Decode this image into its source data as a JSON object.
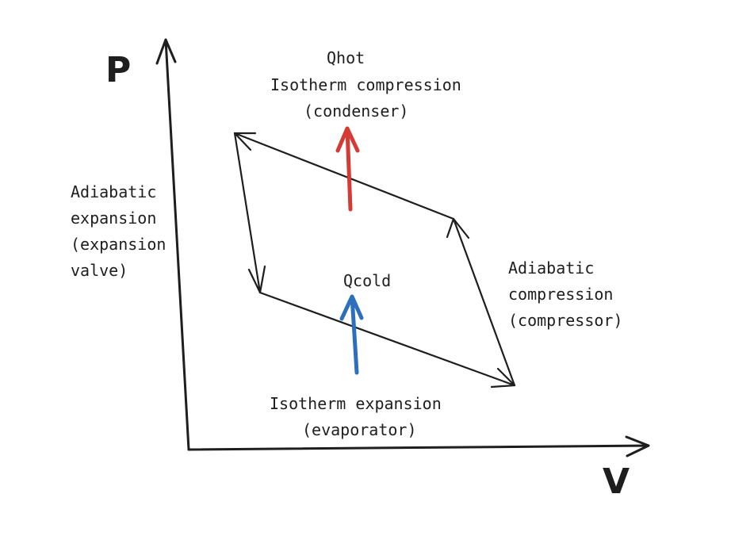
{
  "axes": {
    "y_label": "P",
    "x_label": "V"
  },
  "labels": {
    "qhot": "Qhot",
    "isotherm_compression": "Isotherm compression",
    "condenser": "(condenser)",
    "adiabatic_expansion_1": "Adiabatic",
    "adiabatic_expansion_2": "expansion",
    "adiabatic_expansion_3": "(expansion",
    "adiabatic_expansion_4": "valve)",
    "qcold": "Qcold",
    "adiabatic_compression_1": "Adiabatic",
    "adiabatic_compression_2": "compression",
    "adiabatic_compression_3": "(compressor)",
    "isotherm_expansion": "Isotherm expansion",
    "evaporator": "(evaporator)"
  },
  "colors": {
    "hot": "#d63a34",
    "cold": "#2d6fbd",
    "ink": "#1e1e1e"
  }
}
